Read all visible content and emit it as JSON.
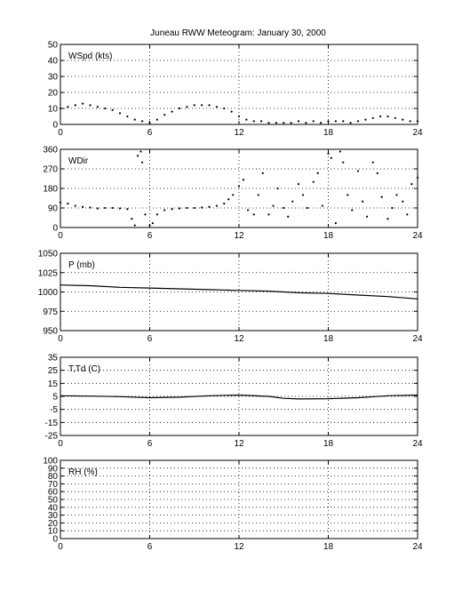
{
  "figure": {
    "title": "Juneau RWW Meteogram:   January 30, 2000"
  },
  "chart_data": [
    {
      "type": "scatter",
      "panel_label": "WSpd (kts)",
      "xlim": [
        0,
        24
      ],
      "ylim": [
        0,
        50
      ],
      "xticks": [
        "0",
        "6",
        "12",
        "18",
        "24"
      ],
      "yticks": [
        "0",
        "10",
        "20",
        "30",
        "40",
        "50"
      ],
      "grid": true,
      "x": [
        0.0,
        0.5,
        1.0,
        1.5,
        2.0,
        2.5,
        3.0,
        3.5,
        4.0,
        4.5,
        5.0,
        5.5,
        6.0,
        6.5,
        7.0,
        7.5,
        8.0,
        8.5,
        9.0,
        9.5,
        10.0,
        10.5,
        11.0,
        11.5,
        12.0,
        12.5,
        13.0,
        13.5,
        14.0,
        14.5,
        15.0,
        15.5,
        16.0,
        16.5,
        17.0,
        17.5,
        18.0,
        18.5,
        19.0,
        19.5,
        20.0,
        20.5,
        21.0,
        21.5,
        22.0,
        22.5,
        23.0,
        23.5,
        24.0
      ],
      "y": [
        10,
        11,
        12,
        13,
        12,
        11,
        10,
        9,
        7,
        5,
        3,
        2,
        1,
        3,
        6,
        8,
        10,
        11,
        12,
        12,
        12,
        11,
        10,
        8,
        5,
        3,
        2,
        2,
        1,
        1,
        1,
        1,
        2,
        1,
        2,
        1,
        2,
        2,
        2,
        1,
        2,
        3,
        4,
        5,
        5,
        4,
        3,
        2,
        2
      ]
    },
    {
      "type": "scatter",
      "panel_label": "WDir",
      "xlim": [
        0,
        24
      ],
      "ylim": [
        0,
        360
      ],
      "xticks": [
        "0",
        "6",
        "12",
        "18",
        "24"
      ],
      "yticks": [
        "0",
        "90",
        "180",
        "270",
        "360"
      ],
      "grid": true,
      "x": [
        0.0,
        0.5,
        1.0,
        1.5,
        2.0,
        2.5,
        3.0,
        3.5,
        4.0,
        4.5,
        4.8,
        5.0,
        5.2,
        5.4,
        5.5,
        5.7,
        6.0,
        6.2,
        6.5,
        7.0,
        7.5,
        8.0,
        8.5,
        9.0,
        9.5,
        10.0,
        10.5,
        11.0,
        11.3,
        11.6,
        12.0,
        12.3,
        12.6,
        13.0,
        13.3,
        13.6,
        14.0,
        14.3,
        14.6,
        15.0,
        15.3,
        15.6,
        16.0,
        16.3,
        16.6,
        17.0,
        17.3,
        17.6,
        18.0,
        18.2,
        18.5,
        18.8,
        19.0,
        19.3,
        19.6,
        20.0,
        20.3,
        20.6,
        21.0,
        21.3,
        21.6,
        22.0,
        22.3,
        22.6,
        23.0,
        23.3,
        23.6,
        24.0
      ],
      "y": [
        115,
        110,
        100,
        95,
        92,
        88,
        90,
        90,
        88,
        85,
        40,
        10,
        330,
        350,
        300,
        60,
        10,
        20,
        60,
        80,
        85,
        88,
        90,
        90,
        92,
        95,
        100,
        110,
        130,
        150,
        190,
        220,
        80,
        60,
        150,
        250,
        60,
        100,
        180,
        90,
        50,
        120,
        200,
        150,
        90,
        210,
        250,
        100,
        340,
        320,
        20,
        350,
        300,
        150,
        80,
        260,
        120,
        50,
        300,
        250,
        140,
        40,
        90,
        150,
        120,
        60,
        200,
        230
      ]
    },
    {
      "type": "line",
      "panel_label": "P (mb)",
      "xlim": [
        0,
        24
      ],
      "ylim": [
        950,
        1050
      ],
      "xticks": [
        "0",
        "6",
        "12",
        "18",
        "24"
      ],
      "yticks": [
        "950",
        "975",
        "1000",
        "1025",
        "1050"
      ],
      "grid": true,
      "x": [
        0,
        2,
        4,
        6,
        8,
        10,
        12,
        14,
        16,
        18,
        20,
        22,
        24
      ],
      "y": [
        1009,
        1008,
        1006,
        1005,
        1004,
        1003,
        1002,
        1001,
        999,
        998,
        996,
        994,
        991
      ]
    },
    {
      "type": "line",
      "panel_label": "T,Td (C)",
      "xlim": [
        0,
        24
      ],
      "ylim": [
        -25,
        35
      ],
      "xticks": [
        "0",
        "6",
        "12",
        "18",
        "24"
      ],
      "yticks": [
        "-25",
        "-15",
        "-5",
        "5",
        "15",
        "25",
        "35"
      ],
      "grid": true,
      "x": [
        0,
        2,
        4,
        6,
        8,
        10,
        12,
        14,
        15,
        16,
        18,
        20,
        22,
        24
      ],
      "y": [
        5.5,
        5.2,
        4.8,
        4.0,
        4.4,
        5.5,
        6.0,
        5.0,
        3.5,
        3.0,
        3.2,
        4.0,
        5.5,
        6.0
      ]
    },
    {
      "type": "line",
      "panel_label": "RH (%)",
      "xlim": [
        0,
        24
      ],
      "ylim": [
        0,
        100
      ],
      "xticks": [
        "0",
        "6",
        "12",
        "18",
        "24"
      ],
      "yticks": [
        "0",
        "10",
        "20",
        "30",
        "40",
        "50",
        "60",
        "70",
        "80",
        "90",
        "100"
      ],
      "grid": true,
      "x": [],
      "y": []
    }
  ]
}
